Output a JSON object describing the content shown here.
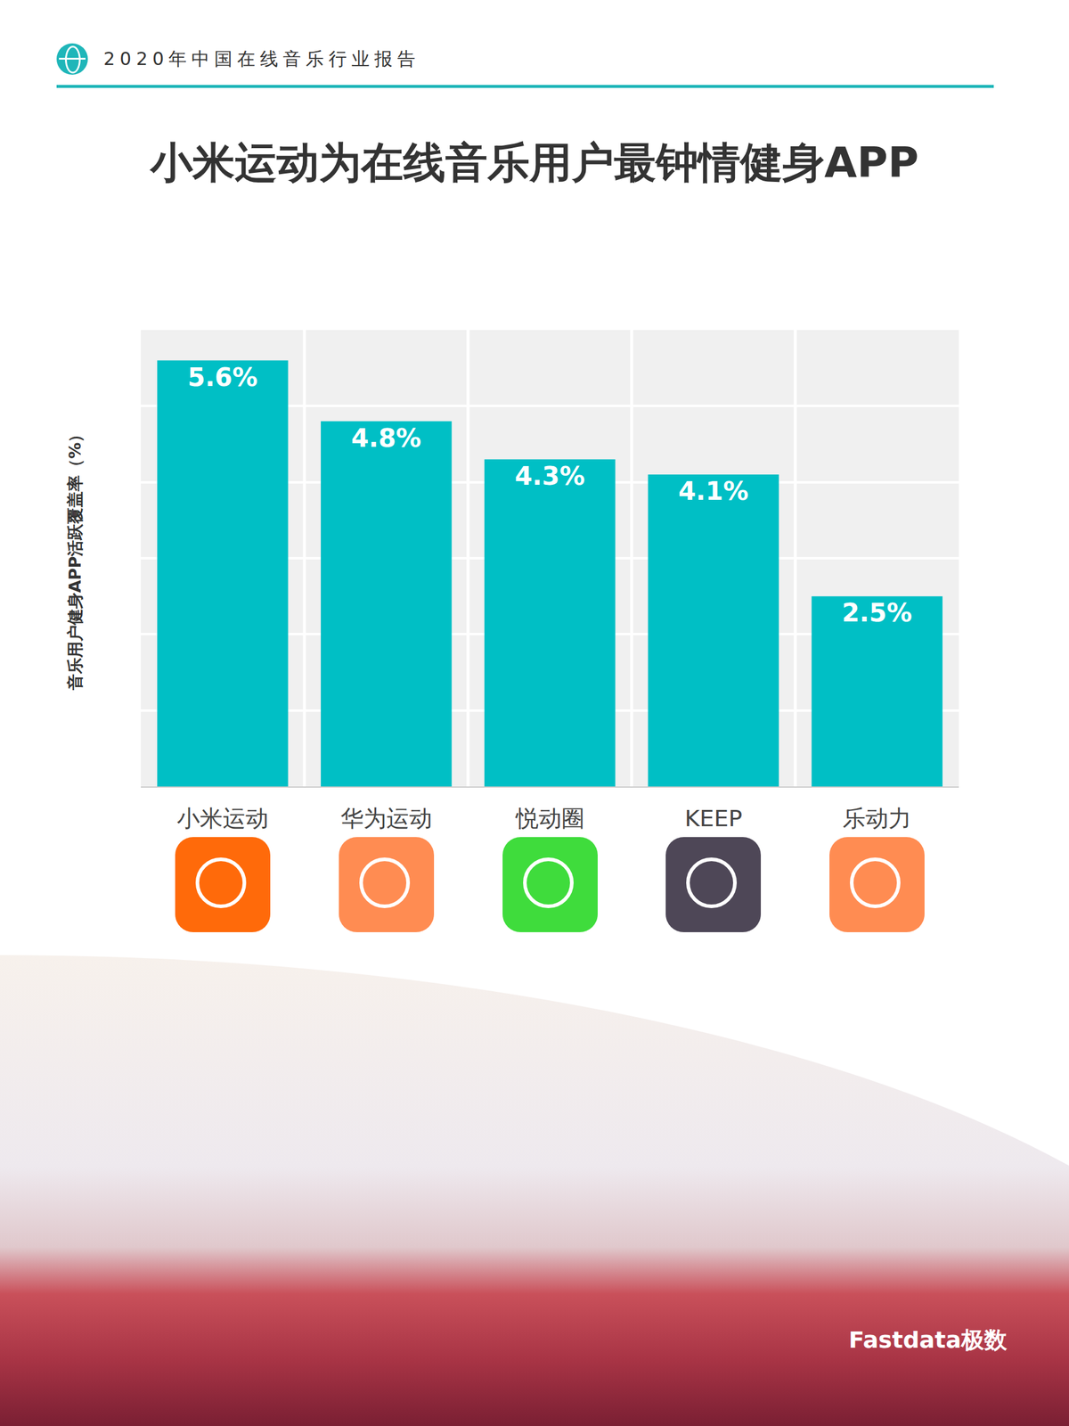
{
  "header": "2020年中国在线音乐行业报告",
  "brand": "Fastdata极数",
  "chart_data": {
    "type": "bar",
    "title": "小米运动为在线音乐用户最钟情健身APP",
    "y_label": "音乐用户健身APP活跃覆盖率（%）",
    "categories": [
      "小米运动",
      "华为运动",
      "悦动圈",
      "KEEP",
      "乐动力"
    ],
    "values": [
      5.6,
      4.8,
      4.3,
      4.1,
      2.5
    ],
    "value_labels": [
      "5.6%",
      "4.8%",
      "4.3%",
      "4.1%",
      "2.5%"
    ],
    "color": "#00bfc5",
    "ylim": [
      0,
      6
    ],
    "yticks": [
      0,
      1,
      2,
      3,
      4,
      5,
      6
    ],
    "grid": true,
    "data_labels": true,
    "tick_labels": "x"
  }
}
